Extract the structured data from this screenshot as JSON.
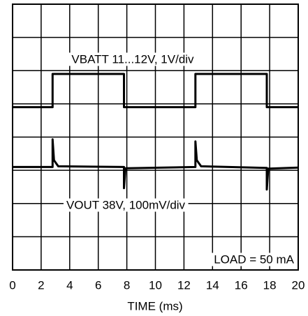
{
  "chart_data": {
    "type": "line",
    "x_label": "TIME (ms)",
    "xlim": [
      0,
      20
    ],
    "xticks": [
      0,
      2,
      4,
      6,
      8,
      10,
      12,
      14,
      16,
      18,
      20
    ],
    "ylim": [
      0,
      8
    ],
    "yticks": [
      0,
      1,
      2,
      3,
      4,
      5,
      6,
      7,
      8
    ],
    "grid": true,
    "annotations": [
      "VBATT 11...12V, 1V/div",
      "VOUT 38V, 100mV/div",
      "LOAD = 50 mA"
    ],
    "series": [
      {
        "color": "#000000",
        "x": [
          0,
          2.8,
          2.8,
          7.8,
          7.8,
          12.8,
          12.8,
          17.8,
          17.8,
          20
        ],
        "values": [
          4.9,
          4.9,
          5.9,
          5.9,
          4.9,
          4.9,
          5.9,
          5.9,
          4.9,
          4.9
        ]
      },
      {
        "color": "#000000",
        "x": [
          0,
          2.8,
          2.8,
          2.9,
          3.2,
          7.8,
          7.8,
          7.9,
          12.8,
          12.8,
          12.9,
          13.2,
          17.8,
          17.8,
          17.9,
          20
        ],
        "values": [
          3.1,
          3.1,
          3.93,
          3.3,
          3.12,
          3.1,
          2.46,
          3.06,
          3.1,
          3.87,
          3.3,
          3.12,
          3.07,
          2.42,
          3.05,
          3.08
        ]
      }
    ]
  }
}
